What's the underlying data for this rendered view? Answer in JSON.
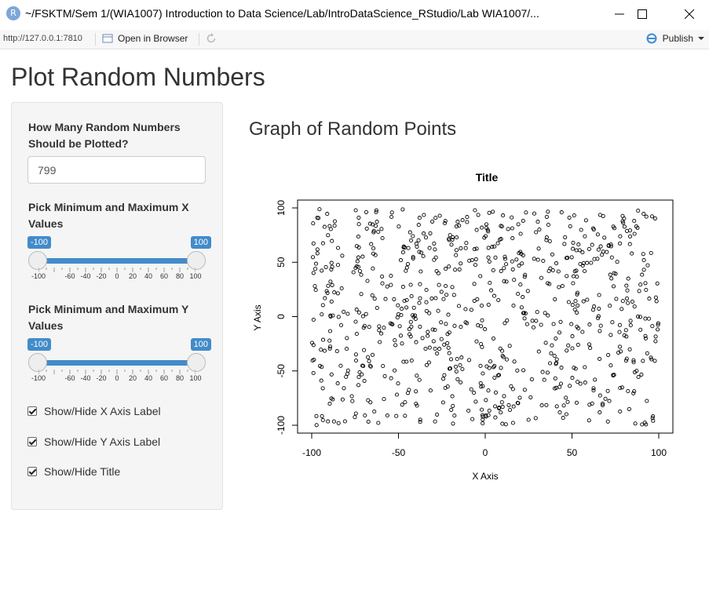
{
  "window": {
    "title": "~/FSKTM/Sem 1/(WIA1007) Introduction to Data Science/Lab/IntroDataScience_RStudio/Lab WIA1007/...",
    "icon_letter": "R"
  },
  "toolbar": {
    "url": "http://127.0.0.1:7810",
    "open_label": "Open in Browser",
    "publish_label": "Publish"
  },
  "page": {
    "title": "Plot Random Numbers",
    "main_title": "Graph of Random Points"
  },
  "sidebar": {
    "count_label": "How Many Random Numbers Should be Plotted?",
    "count_value": "799",
    "x_label": "Pick Minimum and Maximum X Values",
    "x_range": {
      "min_label": "-100",
      "max_label": "100",
      "min": -100,
      "max": 100
    },
    "y_label": "Pick Minimum and Maximum Y Values",
    "y_range": {
      "min_label": "-100",
      "max_label": "100",
      "min": -100,
      "max": 100
    },
    "slider_ticks": [
      "-100",
      "-60",
      "-40",
      "-20",
      "0",
      "20",
      "40",
      "60",
      "80",
      "100"
    ],
    "checkboxes": [
      {
        "label": "Show/Hide X Axis Label",
        "checked": true
      },
      {
        "label": "Show/Hide Y Axis Label",
        "checked": true
      },
      {
        "label": "Show/Hide Title",
        "checked": true
      }
    ]
  },
  "chart_data": {
    "type": "scatter",
    "title": "Title",
    "xlabel": "X Axis",
    "ylabel": "Y Axis",
    "xlim": [
      -100,
      100
    ],
    "ylim": [
      -100,
      100
    ],
    "xticks": [
      -100,
      -50,
      0,
      50,
      100
    ],
    "yticks": [
      -100,
      -50,
      0,
      50,
      100
    ],
    "n_points": 799,
    "marker": "open-circle",
    "color": "#000000"
  }
}
